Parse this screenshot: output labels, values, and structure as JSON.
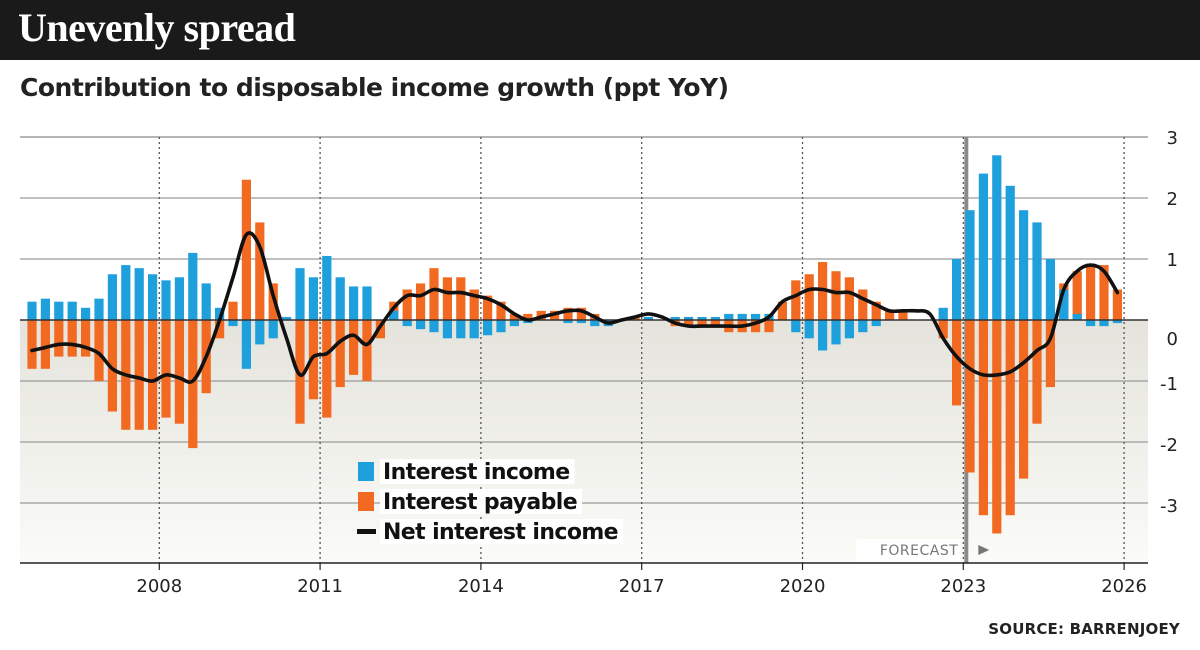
{
  "header": {
    "title": "Unevenly spread",
    "subtitle": "Contribution to disposable income growth (ppt YoY)",
    "source": "SOURCE: BARRENJOEY"
  },
  "chart_data": {
    "type": "bar",
    "frequency": "quarterly",
    "x_start": "2006 Q1",
    "x_tick_labels": [
      "2008",
      "2011",
      "2014",
      "2017",
      "2020",
      "2023",
      "2026"
    ],
    "y_tick_labels": [
      "3",
      "2",
      "1",
      "0",
      "-1",
      "-2",
      "-3"
    ],
    "ylim": [
      -3.7,
      3.0
    ],
    "forecast_label": "FORECAST",
    "forecast_start": "2023 Q3",
    "legend_position": "bottom-left",
    "series": [
      {
        "name": "Interest income",
        "type": "bar",
        "color": "#1ea0dc",
        "values": [
          0.3,
          0.35,
          0.3,
          0.3,
          0.2,
          0.35,
          0.75,
          0.9,
          0.85,
          0.75,
          0.65,
          0.7,
          1.1,
          0.6,
          0.2,
          -0.1,
          -0.8,
          -0.4,
          -0.3,
          0.05,
          0.85,
          0.7,
          1.05,
          0.7,
          0.55,
          0.55,
          0.0,
          0.15,
          -0.1,
          -0.15,
          -0.2,
          -0.3,
          -0.3,
          -0.3,
          -0.25,
          -0.2,
          -0.1,
          -0.05,
          0.0,
          0.0,
          -0.05,
          -0.05,
          -0.1,
          -0.1,
          0.0,
          0.0,
          0.05,
          0.0,
          0.05,
          0.05,
          0.05,
          0.05,
          0.1,
          0.1,
          0.1,
          0.1,
          0.0,
          -0.2,
          -0.3,
          -0.5,
          -0.4,
          -0.3,
          -0.2,
          -0.1,
          0.0,
          0.0,
          0.0,
          0.0,
          0.2,
          1.0,
          1.8,
          2.4,
          2.7,
          2.2,
          1.8,
          1.6,
          1.0,
          0.5,
          0.1,
          -0.1,
          -0.1,
          -0.05
        ]
      },
      {
        "name": "Interest payable",
        "type": "bar",
        "color": "#f26a21",
        "values": [
          -0.8,
          -0.8,
          -0.6,
          -0.6,
          -0.6,
          -1.0,
          -1.5,
          -1.8,
          -1.8,
          -1.8,
          -1.6,
          -1.7,
          -2.1,
          -1.2,
          -0.3,
          0.3,
          2.3,
          1.6,
          0.6,
          0.0,
          -1.7,
          -1.3,
          -1.6,
          -1.1,
          -0.9,
          -1.0,
          -0.3,
          0.3,
          0.5,
          0.6,
          0.85,
          0.7,
          0.7,
          0.5,
          0.4,
          0.3,
          0.1,
          0.1,
          0.15,
          0.15,
          0.2,
          0.2,
          0.1,
          -0.05,
          0.0,
          0.05,
          0.05,
          0.0,
          -0.1,
          -0.1,
          -0.1,
          -0.1,
          -0.2,
          -0.2,
          -0.2,
          -0.2,
          0.3,
          0.65,
          0.75,
          0.95,
          0.8,
          0.7,
          0.5,
          0.3,
          0.15,
          0.15,
          0.0,
          0.0,
          -0.3,
          -1.4,
          -2.5,
          -3.2,
          -3.5,
          -3.2,
          -2.6,
          -1.7,
          -1.1,
          0.6,
          0.8,
          0.9,
          0.9,
          0.5
        ]
      },
      {
        "name": "Net interest income",
        "type": "line",
        "color": "#111111",
        "values": [
          -0.5,
          -0.45,
          -0.4,
          -0.4,
          -0.45,
          -0.55,
          -0.8,
          -0.9,
          -0.95,
          -1.0,
          -0.9,
          -0.95,
          -1.0,
          -0.6,
          0.0,
          0.7,
          1.4,
          1.2,
          0.4,
          -0.3,
          -0.9,
          -0.6,
          -0.55,
          -0.35,
          -0.25,
          -0.4,
          -0.1,
          0.2,
          0.4,
          0.4,
          0.5,
          0.45,
          0.45,
          0.4,
          0.35,
          0.25,
          0.1,
          0.0,
          0.05,
          0.1,
          0.15,
          0.15,
          0.05,
          -0.05,
          0.0,
          0.05,
          0.1,
          0.05,
          -0.05,
          -0.1,
          -0.1,
          -0.1,
          -0.1,
          -0.1,
          -0.05,
          0.05,
          0.3,
          0.4,
          0.5,
          0.5,
          0.45,
          0.45,
          0.35,
          0.25,
          0.15,
          0.15,
          0.15,
          0.1,
          -0.3,
          -0.6,
          -0.8,
          -0.9,
          -0.9,
          -0.85,
          -0.7,
          -0.5,
          -0.3,
          0.5,
          0.8,
          0.9,
          0.8,
          0.45
        ]
      }
    ]
  }
}
